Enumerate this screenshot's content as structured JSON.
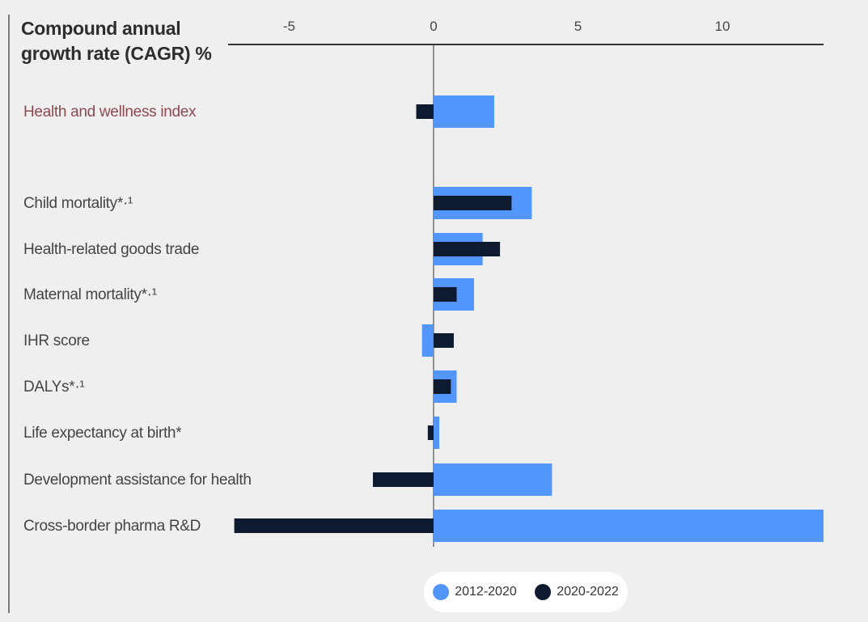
{
  "chart_data": {
    "type": "bar",
    "orientation": "horizontal",
    "title": "Compound annual growth rate (CAGR) %",
    "xlim": [
      -7,
      13.5
    ],
    "xticks": [
      -5,
      0,
      5,
      10
    ],
    "categories": [
      "Health and wellness index",
      "Child mortality*·¹",
      "Health-related goods trade",
      "Maternal mortality*·¹",
      "IHR score",
      "DALYs*·¹",
      "Life expectancy at birth*",
      "Development assistance for health",
      "Cross-border pharma R&D"
    ],
    "category_colors": [
      "#8a4a52",
      "#444444",
      "#444444",
      "#444444",
      "#444444",
      "#444444",
      "#444444",
      "#444444",
      "#444444"
    ],
    "series": [
      {
        "name": "2012-2020",
        "color": "#5295fb",
        "values": [
          2.1,
          3.4,
          1.7,
          1.4,
          -0.4,
          0.8,
          0.2,
          4.1,
          13.5
        ]
      },
      {
        "name": "2020-2022",
        "color": "#0e1a30",
        "values": [
          -0.6,
          2.7,
          2.3,
          0.8,
          0.7,
          0.6,
          -0.2,
          -2.1,
          -6.9
        ]
      }
    ],
    "legend": "bottom"
  }
}
